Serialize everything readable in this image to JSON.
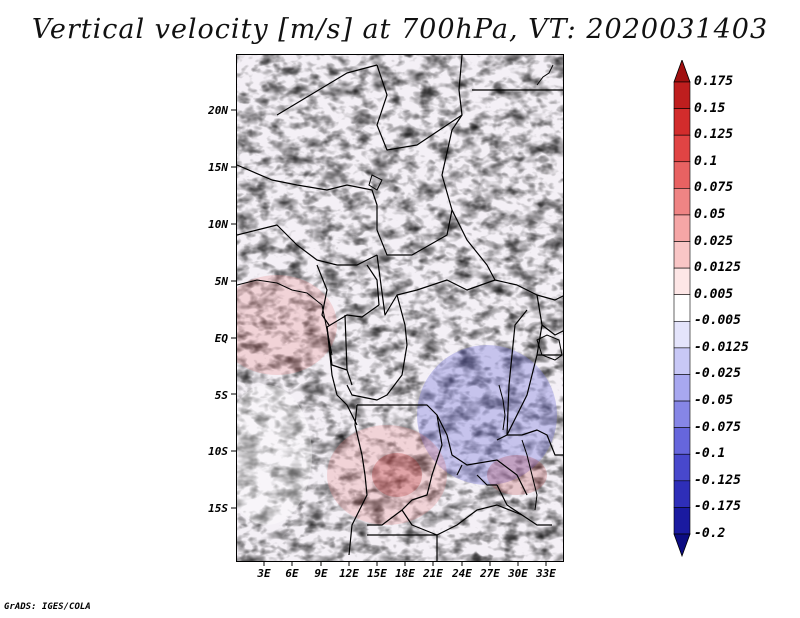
{
  "title": "Vertical velocity [m/s] at 700hPa, VT: 2020031403",
  "latitude_labels": [
    "20N",
    "15N",
    "10N",
    "5N",
    "EQ",
    "5S",
    "10S",
    "15S"
  ],
  "longitude_labels": [
    "3E",
    "6E",
    "9E",
    "12E",
    "15E",
    "18E",
    "21E",
    "24E",
    "27E",
    "30E",
    "33E"
  ],
  "colorbar": {
    "levels": [
      "0.175",
      "0.15",
      "0.125",
      "0.1",
      "0.075",
      "0.05",
      "0.025",
      "0.0125",
      "0.005",
      "-0.005",
      "-0.0125",
      "-0.025",
      "-0.05",
      "-0.075",
      "-0.1",
      "-0.125",
      "-0.175",
      "-0.2"
    ],
    "colors": [
      "#a01010",
      "#be1e1e",
      "#d22c2c",
      "#e04444",
      "#e86262",
      "#ef8484",
      "#f5a6a6",
      "#f9c6c6",
      "#fde6e6",
      "#ffffff",
      "#e4e4fb",
      "#c8c8f6",
      "#a8a8f0",
      "#8686e6",
      "#6666dc",
      "#4848cc",
      "#2e2eb8",
      "#1a1aa0",
      "#0c0c82"
    ]
  },
  "credit": "GrADS: IGES/COLA"
}
